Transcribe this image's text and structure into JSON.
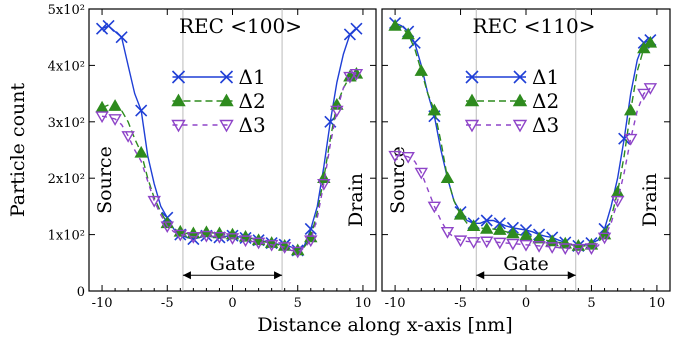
{
  "figure": {
    "xlabel": "Distance along x-axis [nm]",
    "ylabel": "Particle count",
    "colors": {
      "delta1": "#1f3fd6",
      "delta2": "#2e8b1e",
      "delta3": "#8e44c8",
      "guide": "#bbbbbb"
    }
  },
  "chart_data": [
    {
      "type": "line",
      "title": "REC <100>",
      "xlim": [
        -11,
        11
      ],
      "ylim": [
        0,
        500
      ],
      "xticks": [
        -10,
        -5,
        0,
        5,
        10
      ],
      "yticks": [
        {
          "value": 0,
          "label": "0"
        },
        {
          "value": 100,
          "label": "1x10²"
        },
        {
          "value": 200,
          "label": "2x10²"
        },
        {
          "value": 300,
          "label": "3x10²"
        },
        {
          "value": 400,
          "label": "4x10²"
        },
        {
          "value": 500,
          "label": "5x10²"
        }
      ],
      "guides_x": [
        -3.8,
        3.8
      ],
      "gate": {
        "x1": -3.8,
        "x2": 3.8,
        "y": 28,
        "label": "Gate"
      },
      "labels": {
        "source": "Source",
        "drain": "Drain"
      },
      "legend": {
        "position": "upper-center"
      },
      "series": [
        {
          "name": "Δ1",
          "color": "#1f3fd6",
          "marker": "x",
          "dash": "",
          "x": [
            -10,
            -9.5,
            -9,
            -8.5,
            -8,
            -7.5,
            -7,
            -6.5,
            -6,
            -5.5,
            -5,
            -4.5,
            -4,
            -3.5,
            -3,
            -2.5,
            -2,
            -1.5,
            -1,
            -0.5,
            0,
            0.5,
            1,
            1.5,
            2,
            2.5,
            3,
            3.5,
            4,
            4.5,
            5,
            5.5,
            6,
            6.5,
            7,
            7.5,
            8,
            8.5,
            9,
            9.5
          ],
          "y": [
            465,
            470,
            460,
            450,
            400,
            350,
            320,
            240,
            190,
            150,
            130,
            110,
            100,
            95,
            92,
            95,
            98,
            96,
            95,
            97,
            98,
            96,
            94,
            93,
            90,
            88,
            85,
            83,
            82,
            78,
            72,
            80,
            110,
            150,
            220,
            300,
            370,
            420,
            455,
            465
          ],
          "markers_x": [
            -10,
            -9.5,
            -8.5,
            -7,
            -5,
            -4,
            -3,
            -2,
            -1,
            0,
            1,
            2,
            3,
            4,
            5,
            6,
            7.5,
            9,
            9.5
          ],
          "markers_y": [
            465,
            470,
            450,
            320,
            130,
            100,
            92,
            98,
            95,
            98,
            94,
            90,
            85,
            82,
            72,
            110,
            300,
            455,
            465
          ]
        },
        {
          "name": "Δ2",
          "color": "#2e8b1e",
          "marker": "triangle",
          "dash": "7,4",
          "x": [
            -10,
            -9.5,
            -9,
            -8.5,
            -8,
            -7.5,
            -7,
            -6.5,
            -6,
            -5.5,
            -5,
            -4.5,
            -4,
            -3.5,
            -3,
            -2.5,
            -2,
            -1.5,
            -1,
            -0.5,
            0,
            0.5,
            1,
            1.5,
            2,
            2.5,
            3,
            3.5,
            4,
            4.5,
            5,
            5.5,
            6,
            6.5,
            7,
            7.5,
            8,
            8.5,
            9,
            9.5
          ],
          "y": [
            325,
            330,
            328,
            320,
            300,
            270,
            245,
            200,
            165,
            140,
            120,
            110,
            105,
            102,
            102,
            103,
            104,
            103,
            102,
            100,
            100,
            98,
            96,
            93,
            90,
            87,
            85,
            82,
            80,
            75,
            72,
            78,
            95,
            140,
            200,
            270,
            330,
            360,
            380,
            385
          ],
          "markers_x": [
            -10,
            -9,
            -7,
            -5,
            -4,
            -3,
            -2,
            -1,
            0,
            1,
            2,
            3,
            4,
            5,
            6,
            7,
            8,
            9,
            9.5
          ],
          "markers_y": [
            325,
            328,
            245,
            120,
            105,
            102,
            104,
            102,
            100,
            96,
            90,
            85,
            80,
            72,
            95,
            200,
            330,
            380,
            385
          ]
        },
        {
          "name": "Δ3",
          "color": "#8e44c8",
          "marker": "triangle-down",
          "dash": "5,5",
          "x": [
            -10,
            -9.5,
            -9,
            -8.5,
            -8,
            -7.5,
            -7,
            -6.5,
            -6,
            -5.5,
            -5,
            -4.5,
            -4,
            -3.5,
            -3,
            -2.5,
            -2,
            -1.5,
            -1,
            -0.5,
            0,
            0.5,
            1,
            1.5,
            2,
            2.5,
            3,
            3.5,
            4,
            4.5,
            5,
            5.5,
            6,
            6.5,
            7,
            7.5,
            8,
            8.5,
            9,
            9.5
          ],
          "y": [
            310,
            308,
            305,
            295,
            275,
            250,
            230,
            195,
            160,
            135,
            115,
            105,
            100,
            98,
            96,
            97,
            98,
            97,
            96,
            95,
            94,
            92,
            90,
            88,
            86,
            84,
            82,
            80,
            78,
            72,
            70,
            76,
            90,
            130,
            190,
            260,
            320,
            360,
            380,
            385
          ],
          "markers_x": [
            -10,
            -9,
            -8,
            -6,
            -5,
            -4,
            -3,
            -2,
            -1,
            0,
            1,
            2,
            3,
            4,
            5,
            6,
            7,
            8,
            9,
            9.5
          ],
          "markers_y": [
            310,
            305,
            275,
            160,
            115,
            100,
            96,
            98,
            96,
            94,
            90,
            86,
            82,
            78,
            70,
            90,
            190,
            320,
            380,
            385
          ]
        }
      ]
    },
    {
      "type": "line",
      "title": "REC <110>",
      "xlim": [
        -11,
        11
      ],
      "ylim": [
        0,
        500
      ],
      "xticks": [
        -10,
        -5,
        0,
        5,
        10
      ],
      "yticks": [
        {
          "value": 0,
          "label": ""
        },
        {
          "value": 100,
          "label": ""
        },
        {
          "value": 200,
          "label": ""
        },
        {
          "value": 300,
          "label": ""
        },
        {
          "value": 400,
          "label": ""
        },
        {
          "value": 500,
          "label": ""
        }
      ],
      "guides_x": [
        -3.8,
        3.8
      ],
      "gate": {
        "x1": -3.8,
        "x2": 3.8,
        "y": 28,
        "label": "Gate"
      },
      "labels": {
        "source": "Source",
        "drain": "Drain"
      },
      "legend": {
        "position": "upper-center"
      },
      "series": [
        {
          "name": "Δ1",
          "color": "#1f3fd6",
          "marker": "x",
          "dash": "",
          "x": [
            -10,
            -9.5,
            -9,
            -8.5,
            -8,
            -7.5,
            -7,
            -6.5,
            -6,
            -5.5,
            -5,
            -4.5,
            -4,
            -3.5,
            -3,
            -2.5,
            -2,
            -1.5,
            -1,
            -0.5,
            0,
            0.5,
            1,
            1.5,
            2,
            2.5,
            3,
            3.5,
            4,
            4.5,
            5,
            5.5,
            6,
            6.5,
            7,
            7.5,
            8,
            8.5,
            9,
            9.5
          ],
          "y": [
            475,
            470,
            460,
            440,
            400,
            350,
            310,
            250,
            200,
            160,
            140,
            125,
            120,
            120,
            125,
            125,
            120,
            115,
            112,
            110,
            108,
            105,
            100,
            97,
            95,
            90,
            86,
            82,
            80,
            82,
            85,
            90,
            110,
            150,
            200,
            270,
            350,
            410,
            440,
            445
          ],
          "markers_x": [
            -10,
            -9,
            -8.5,
            -7,
            -5,
            -4,
            -3,
            -2,
            -1,
            0,
            1,
            2,
            3,
            4,
            5,
            6,
            7.5,
            9,
            9.5
          ],
          "markers_y": [
            475,
            460,
            440,
            310,
            140,
            120,
            125,
            120,
            112,
            108,
            100,
            95,
            86,
            80,
            85,
            110,
            270,
            440,
            445
          ]
        },
        {
          "name": "Δ2",
          "color": "#2e8b1e",
          "marker": "triangle",
          "dash": "7,4",
          "x": [
            -10,
            -9.5,
            -9,
            -8.5,
            -8,
            -7.5,
            -7,
            -6.5,
            -6,
            -5.5,
            -5,
            -4.5,
            -4,
            -3.5,
            -3,
            -2.5,
            -2,
            -1.5,
            -1,
            -0.5,
            0,
            0.5,
            1,
            1.5,
            2,
            2.5,
            3,
            3.5,
            4,
            4.5,
            5,
            5.5,
            6,
            6.5,
            7,
            7.5,
            8,
            8.5,
            9,
            9.5
          ],
          "y": [
            470,
            468,
            455,
            430,
            390,
            350,
            320,
            265,
            200,
            160,
            135,
            120,
            115,
            112,
            110,
            110,
            108,
            105,
            102,
            100,
            98,
            96,
            93,
            90,
            88,
            86,
            84,
            82,
            80,
            80,
            82,
            86,
            100,
            130,
            175,
            240,
            320,
            390,
            430,
            440
          ],
          "markers_x": [
            -10,
            -9,
            -8,
            -7,
            -6,
            -5,
            -4,
            -3,
            -2,
            -1,
            0,
            1,
            2,
            3,
            4,
            5,
            6,
            7,
            8,
            9,
            9.5
          ],
          "markers_y": [
            470,
            455,
            390,
            320,
            200,
            135,
            115,
            110,
            108,
            102,
            98,
            93,
            88,
            84,
            80,
            82,
            100,
            175,
            320,
            430,
            440
          ]
        },
        {
          "name": "Δ3",
          "color": "#8e44c8",
          "marker": "triangle-down",
          "dash": "5,5",
          "x": [
            -10,
            -9.5,
            -9,
            -8.5,
            -8,
            -7.5,
            -7,
            -6.5,
            -6,
            -5.5,
            -5,
            -4.5,
            -4,
            -3.5,
            -3,
            -2.5,
            -2,
            -1.5,
            -1,
            -0.5,
            0,
            0.5,
            1,
            1.5,
            2,
            2.5,
            3,
            3.5,
            4,
            4.5,
            5,
            5.5,
            6,
            6.5,
            7,
            7.5,
            8,
            8.5,
            9,
            9.5
          ],
          "y": [
            240,
            240,
            238,
            230,
            210,
            180,
            150,
            125,
            105,
            95,
            90,
            88,
            87,
            87,
            88,
            87,
            86,
            85,
            84,
            83,
            82,
            81,
            80,
            79,
            78,
            77,
            76,
            75,
            75,
            75,
            76,
            80,
            95,
            120,
            160,
            210,
            270,
            320,
            350,
            360
          ],
          "markers_x": [
            -10,
            -9,
            -8,
            -7,
            -6,
            -5,
            -4,
            -3,
            -2,
            -1,
            0,
            1,
            2,
            3,
            4,
            5,
            6,
            7,
            8,
            9,
            9.5
          ],
          "markers_y": [
            240,
            238,
            210,
            150,
            105,
            90,
            87,
            88,
            86,
            84,
            82,
            80,
            78,
            76,
            75,
            76,
            95,
            160,
            270,
            350,
            360
          ]
        }
      ]
    }
  ]
}
